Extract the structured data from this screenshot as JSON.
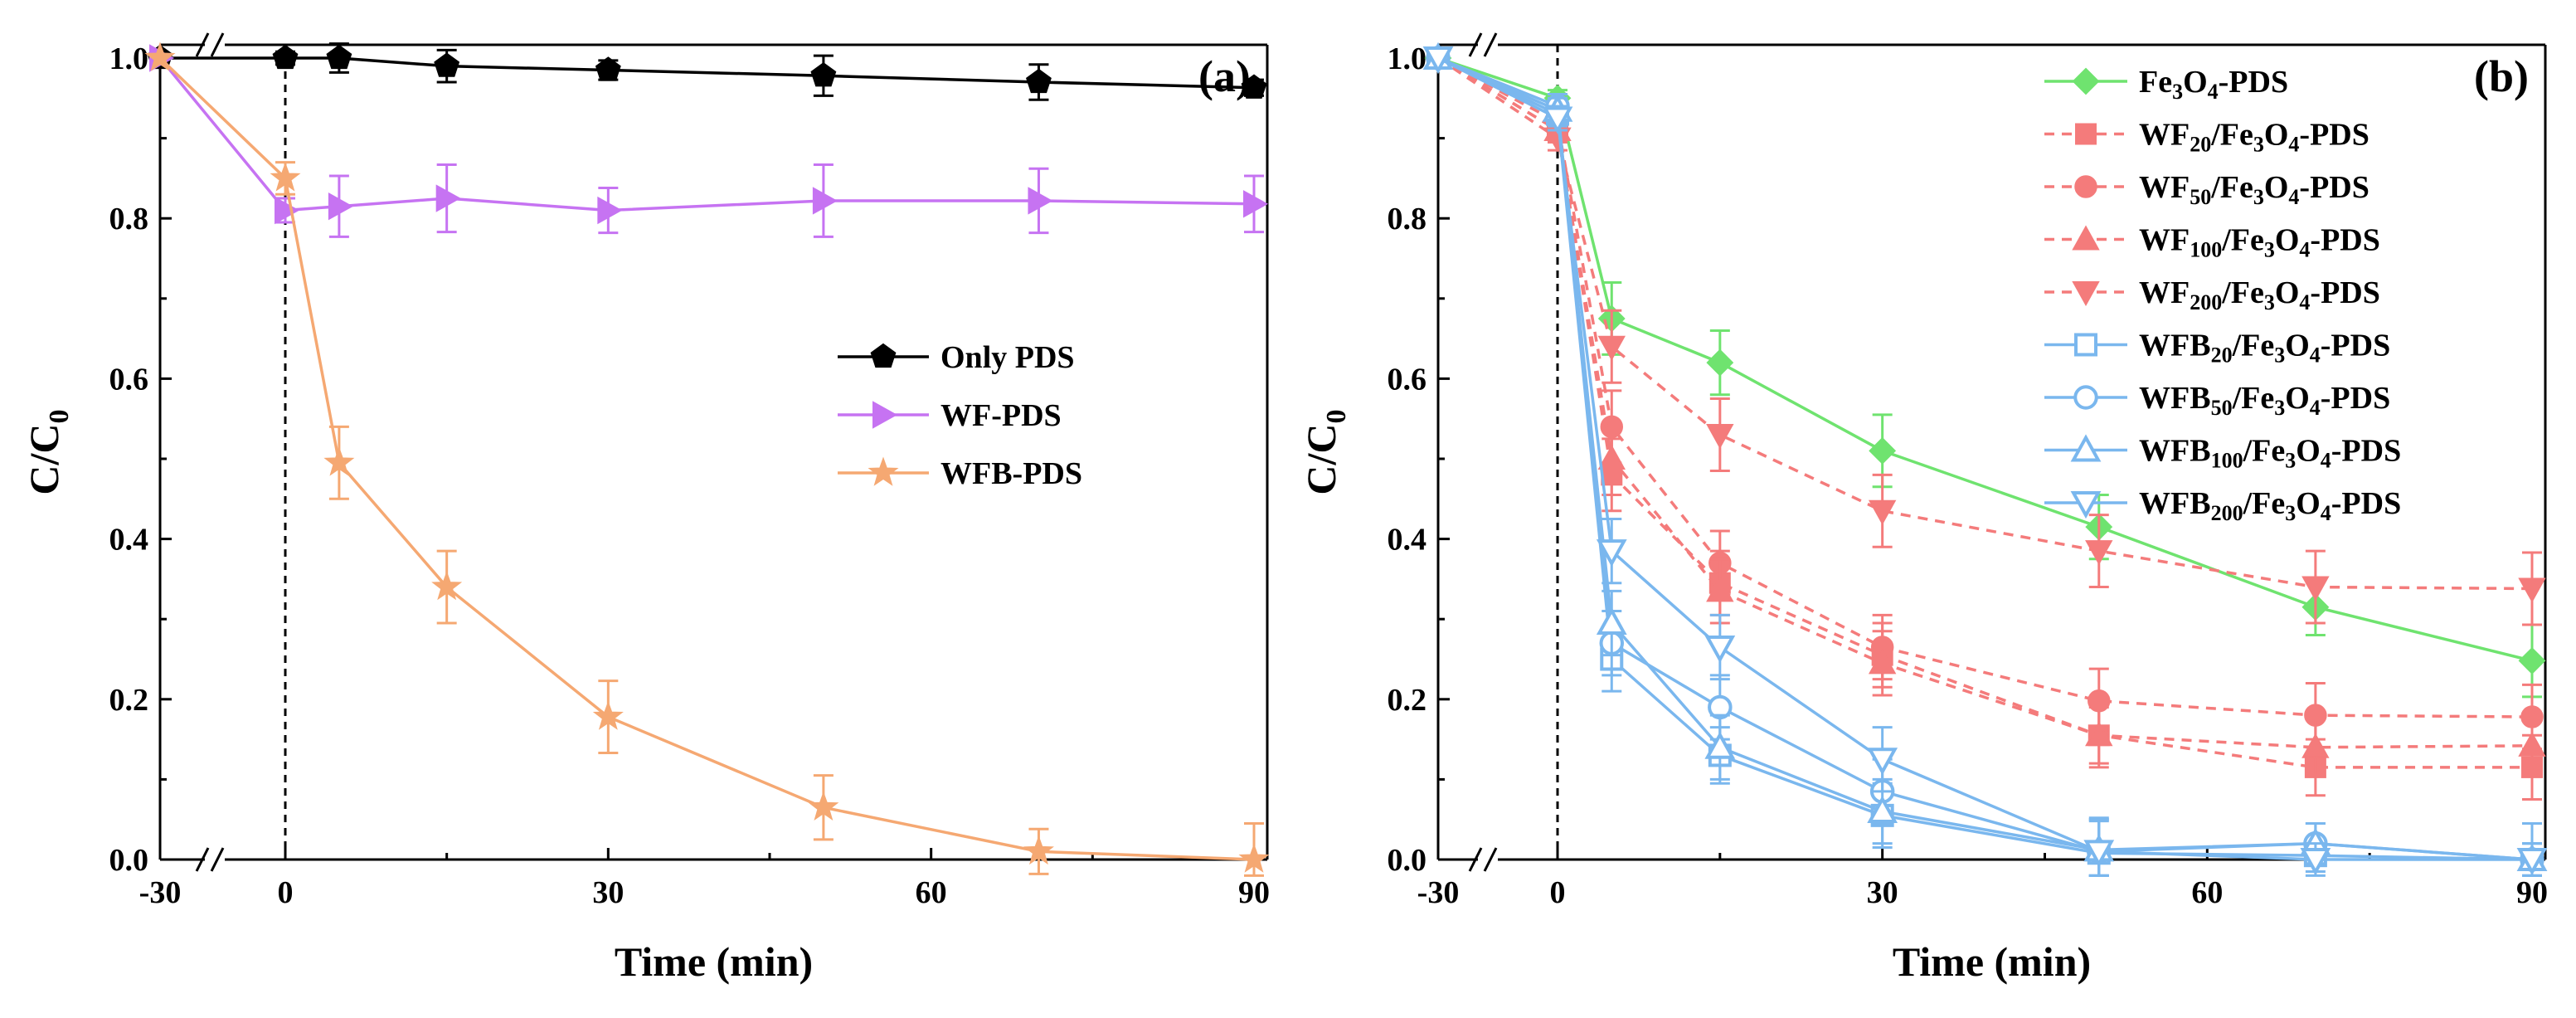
{
  "chart_data": [
    {
      "type": "line",
      "panel_label": "(a)",
      "xlabel": "Time (min)",
      "ylabel": "C/C",
      "ylabel_sub": "0",
      "xlim": [
        -30,
        90
      ],
      "ylim": [
        0,
        1.0
      ],
      "x_ticks": [
        -30,
        0,
        30,
        60,
        90
      ],
      "x_tick_labels": [
        "-30",
        "0",
        "30",
        "60",
        "90"
      ],
      "y_ticks": [
        0,
        0.2,
        0.4,
        0.6,
        0.8,
        1.0
      ],
      "y_tick_labels": [
        "0.0",
        "0.2",
        "0.4",
        "0.6",
        "0.8",
        "1.0"
      ],
      "axis_break": "x between -30 and 0",
      "legend_position": "center-right",
      "series": [
        {
          "name": "Only PDS",
          "color": "#000000",
          "dash": "solid",
          "marker": "pentagon",
          "x": [
            -30,
            0,
            5,
            15,
            30,
            50,
            70,
            90
          ],
          "y": [
            1.0,
            1.0,
            1.0,
            0.99,
            0.985,
            0.978,
            0.97,
            0.963
          ],
          "err": [
            0,
            0.008,
            0.018,
            0.02,
            0.012,
            0.025,
            0.022,
            0.01
          ]
        },
        {
          "name": "WF-PDS",
          "color": "#c673f2",
          "dash": "solid",
          "marker": "triangle-right",
          "x": [
            -30,
            0,
            5,
            15,
            30,
            50,
            70,
            90
          ],
          "y": [
            1.0,
            0.81,
            0.815,
            0.825,
            0.81,
            0.822,
            0.822,
            0.818
          ],
          "err": [
            0,
            0.015,
            0.038,
            0.042,
            0.028,
            0.045,
            0.04,
            0.035
          ]
        },
        {
          "name": "WFB-PDS",
          "color": "#f5a872",
          "dash": "solid",
          "marker": "star",
          "x": [
            -30,
            0,
            5,
            15,
            30,
            50,
            70,
            90
          ],
          "y": [
            1.0,
            0.85,
            0.495,
            0.34,
            0.178,
            0.065,
            0.01,
            0.0
          ],
          "err": [
            0,
            0.02,
            0.045,
            0.045,
            0.045,
            0.04,
            0.028,
            0.045
          ]
        }
      ]
    },
    {
      "type": "line",
      "panel_label": "(b)",
      "xlabel": "Time (min)",
      "ylabel": "C/C",
      "ylabel_sub": "0",
      "xlim": [
        -30,
        90
      ],
      "ylim": [
        0,
        1.0
      ],
      "x_ticks": [
        -30,
        0,
        30,
        60,
        90
      ],
      "x_tick_labels": [
        "-30",
        "0",
        "30",
        "60",
        "90"
      ],
      "y_ticks": [
        0,
        0.2,
        0.4,
        0.6,
        0.8,
        1.0
      ],
      "y_tick_labels": [
        "0.0",
        "0.2",
        "0.4",
        "0.6",
        "0.8",
        "1.0"
      ],
      "axis_break": "x between -30 and 0",
      "legend_position": "top-right",
      "series": [
        {
          "name": "Fe3O4-PDS",
          "label_parts": [
            [
              "Fe",
              ""
            ],
            [
              "3",
              "sub"
            ],
            [
              "O",
              ""
            ],
            [
              "4",
              "sub"
            ],
            [
              "-PDS",
              ""
            ]
          ],
          "color": "#6fe36f",
          "dash": "solid",
          "marker": "diamond",
          "fill": true,
          "x": [
            -30,
            0,
            5,
            15,
            30,
            50,
            70,
            90
          ],
          "y": [
            1.0,
            0.95,
            0.675,
            0.62,
            0.51,
            0.415,
            0.315,
            0.248
          ],
          "err": [
            0,
            0.01,
            0.045,
            0.04,
            0.045,
            0.04,
            0.035,
            0.045
          ]
        },
        {
          "name": "WF20/Fe3O4-PDS",
          "label_parts": [
            [
              "WF",
              ""
            ],
            [
              "20",
              "sub"
            ],
            [
              "/Fe",
              ""
            ],
            [
              "3",
              "sub"
            ],
            [
              "O",
              ""
            ],
            [
              "4",
              "sub"
            ],
            [
              "-PDS",
              ""
            ]
          ],
          "color": "#f47b7b",
          "dash": "dashed",
          "marker": "square",
          "fill": true,
          "x": [
            -30,
            0,
            5,
            15,
            30,
            50,
            70,
            90
          ],
          "y": [
            1.0,
            0.91,
            0.48,
            0.345,
            0.255,
            0.155,
            0.115,
            0.115
          ],
          "err": [
            0,
            0.015,
            0.045,
            0.04,
            0.04,
            0.04,
            0.035,
            0.04
          ]
        },
        {
          "name": "WF50/Fe3O4-PDS",
          "label_parts": [
            [
              "WF",
              ""
            ],
            [
              "50",
              "sub"
            ],
            [
              "/Fe",
              ""
            ],
            [
              "3",
              "sub"
            ],
            [
              "O",
              ""
            ],
            [
              "4",
              "sub"
            ],
            [
              "-PDS",
              ""
            ]
          ],
          "color": "#f47b7b",
          "dash": "dashed",
          "marker": "circle",
          "fill": true,
          "x": [
            -30,
            0,
            5,
            15,
            30,
            50,
            70,
            90
          ],
          "y": [
            1.0,
            0.92,
            0.54,
            0.37,
            0.265,
            0.198,
            0.18,
            0.178
          ],
          "err": [
            0,
            0.015,
            0.045,
            0.04,
            0.04,
            0.04,
            0.04,
            0.04
          ]
        },
        {
          "name": "WF100/Fe3O4-PDS",
          "label_parts": [
            [
              "WF",
              ""
            ],
            [
              "100",
              "sub"
            ],
            [
              "/Fe",
              ""
            ],
            [
              "3",
              "sub"
            ],
            [
              "O",
              ""
            ],
            [
              "4",
              "sub"
            ],
            [
              "-PDS",
              ""
            ]
          ],
          "color": "#f47b7b",
          "dash": "dashed",
          "marker": "triangle-up",
          "fill": true,
          "x": [
            -30,
            0,
            5,
            15,
            30,
            50,
            70,
            90
          ],
          "y": [
            1.0,
            0.91,
            0.5,
            0.335,
            0.245,
            0.155,
            0.14,
            0.142
          ],
          "err": [
            0,
            0.015,
            0.045,
            0.04,
            0.04,
            0.035,
            0.035,
            0.035
          ]
        },
        {
          "name": "WF200/Fe3O4-PDS",
          "label_parts": [
            [
              "WF",
              ""
            ],
            [
              "200",
              "sub"
            ],
            [
              "/Fe",
              ""
            ],
            [
              "3",
              "sub"
            ],
            [
              "O",
              ""
            ],
            [
              "4",
              "sub"
            ],
            [
              "-PDS",
              ""
            ]
          ],
          "color": "#f47b7b",
          "dash": "dashed",
          "marker": "triangle-down",
          "fill": true,
          "x": [
            -30,
            0,
            5,
            15,
            30,
            50,
            70,
            90
          ],
          "y": [
            1.0,
            0.9,
            0.64,
            0.53,
            0.435,
            0.385,
            0.34,
            0.338
          ],
          "err": [
            0,
            0.015,
            0.045,
            0.045,
            0.045,
            0.045,
            0.045,
            0.045
          ]
        },
        {
          "name": "WFB20/Fe3O4-PDS",
          "label_parts": [
            [
              "WFB",
              ""
            ],
            [
              "20",
              "sub"
            ],
            [
              "/Fe",
              ""
            ],
            [
              "3",
              "sub"
            ],
            [
              "O",
              ""
            ],
            [
              "4",
              "sub"
            ],
            [
              "-PDS",
              ""
            ]
          ],
          "color": "#7ab7ee",
          "dash": "solid",
          "marker": "square",
          "fill": false,
          "x": [
            -30,
            0,
            5,
            15,
            30,
            50,
            70,
            90
          ],
          "y": [
            1.0,
            0.93,
            0.25,
            0.13,
            0.055,
            0.008,
            0.005,
            0.0
          ],
          "err": [
            0,
            0.015,
            0.04,
            0.035,
            0.04,
            0.04,
            0.02,
            0.02
          ]
        },
        {
          "name": "WFB50/Fe3O4-PDS",
          "label_parts": [
            [
              "WFB",
              ""
            ],
            [
              "50",
              "sub"
            ],
            [
              "/Fe",
              ""
            ],
            [
              "3",
              "sub"
            ],
            [
              "O",
              ""
            ],
            [
              "4",
              "sub"
            ],
            [
              "-PDS",
              ""
            ]
          ],
          "color": "#7ab7ee",
          "dash": "solid",
          "marker": "circle",
          "fill": false,
          "x": [
            -30,
            0,
            5,
            15,
            30,
            50,
            70,
            90
          ],
          "y": [
            1.0,
            0.94,
            0.27,
            0.19,
            0.085,
            0.01,
            0.02,
            0.0
          ],
          "err": [
            0,
            0.015,
            0.04,
            0.04,
            0.04,
            0.04,
            0.025,
            0.02
          ]
        },
        {
          "name": "WFB100/Fe3O4-PDS",
          "label_parts": [
            [
              "WFB",
              ""
            ],
            [
              "100",
              "sub"
            ],
            [
              "/Fe",
              ""
            ],
            [
              "3",
              "sub"
            ],
            [
              "O",
              ""
            ],
            [
              "4",
              "sub"
            ],
            [
              "-PDS",
              ""
            ]
          ],
          "color": "#7ab7ee",
          "dash": "solid",
          "marker": "triangle-up",
          "fill": false,
          "x": [
            -30,
            0,
            5,
            15,
            30,
            50,
            70,
            90
          ],
          "y": [
            1.0,
            0.935,
            0.295,
            0.14,
            0.06,
            0.012,
            0.02,
            0.0
          ],
          "err": [
            0,
            0.015,
            0.04,
            0.04,
            0.04,
            0.04,
            0.025,
            0.02
          ]
        },
        {
          "name": "WFB200/Fe3O4-PDS",
          "label_parts": [
            [
              "WFB",
              ""
            ],
            [
              "200",
              "sub"
            ],
            [
              "/Fe",
              ""
            ],
            [
              "3",
              "sub"
            ],
            [
              "O",
              ""
            ],
            [
              "4",
              "sub"
            ],
            [
              "-PDS",
              ""
            ]
          ],
          "color": "#7ab7ee",
          "dash": "solid",
          "marker": "triangle-down",
          "fill": false,
          "x": [
            -30,
            0,
            5,
            15,
            30,
            50,
            70,
            90
          ],
          "y": [
            1.0,
            0.925,
            0.385,
            0.265,
            0.125,
            0.01,
            0.0,
            0.0
          ],
          "err": [
            0,
            0.015,
            0.04,
            0.04,
            0.04,
            0.04,
            0.02,
            0.045
          ]
        }
      ]
    }
  ]
}
